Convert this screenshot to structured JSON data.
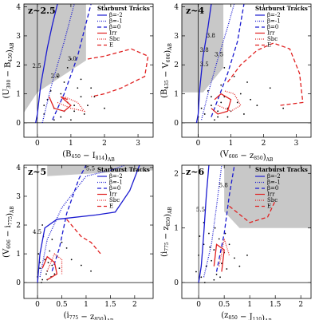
{
  "chart_data": [
    {
      "type": "scatter",
      "label": "z~2.5",
      "legend_title": "Starburst Tracks",
      "xlabel": [
        [
          "(B",
          "450"
        ],
        [
          " − I",
          "814"
        ],
        [
          ")",
          "AB"
        ]
      ],
      "ylabel": [
        [
          "(U",
          "300"
        ],
        [
          " − B",
          "450"
        ],
        [
          ")",
          "AB"
        ]
      ],
      "xlim": [
        -0.4,
        3.45
      ],
      "ylim": [
        -0.5,
        4.1
      ],
      "xticks": [
        0,
        1,
        2,
        3
      ],
      "yticks": [
        0,
        1,
        2,
        3,
        4
      ],
      "region": {
        "color": "#c8c8c8",
        "x": [
          -0.4,
          1.45,
          1.45,
          0,
          -0.4
        ],
        "y": [
          4.1,
          4.1,
          2.15,
          1.05,
          0.35
        ]
      },
      "points": {
        "color": "#000000",
        "x": [
          0.2,
          0.5,
          0.7,
          0.9,
          1.1,
          1.3,
          0.4,
          0.8,
          1.0,
          1.2,
          1.5,
          0.3,
          0.6,
          1.4,
          1.7,
          0.9,
          1.1,
          0.5,
          2.0,
          0.7,
          1.3,
          0.8,
          1.6,
          0.2,
          1.0
        ],
        "y": [
          0.3,
          0.5,
          0.2,
          0.7,
          0.4,
          0.9,
          1.1,
          1.4,
          0.1,
          1.2,
          0.6,
          0.8,
          1.6,
          0.3,
          0.9,
          1.9,
          0.6,
          0.1,
          0.5,
          1.0,
          1.5,
          0.4,
          1.2,
          0.6,
          2.2
        ]
      },
      "series": [
        {
          "name": "β=-2",
          "color": "#1a1ad0",
          "dash": "solid",
          "x": [
            -0.05,
            0.0,
            0.1,
            0.3,
            0.45,
            0.6
          ],
          "y": [
            0,
            0.3,
            1.3,
            2.6,
            3.4,
            4.1
          ]
        },
        {
          "name": "β=-1",
          "color": "#1a1ad0",
          "dash": "dotted",
          "x": [
            0.15,
            0.4,
            0.8,
            1.1
          ],
          "y": [
            0,
            1.2,
            2.8,
            4.1
          ]
        },
        {
          "name": "β=0",
          "color": "#1a1ad0",
          "dash": "dashed",
          "x": [
            0.45,
            0.8,
            1.2,
            1.6
          ],
          "y": [
            0.1,
            1.0,
            2.3,
            4.1
          ]
        },
        {
          "name": "Irr",
          "color": "#e02020",
          "dash": "solid",
          "x": [
            0.35,
            0.5,
            0.8,
            1.0,
            0.7,
            0.9
          ],
          "y": [
            0.9,
            0.5,
            0.4,
            0.6,
            0.9,
            0.8
          ]
        },
        {
          "name": "Sbc",
          "color": "#e02020",
          "dash": "dotted",
          "x": [
            0.6,
            1.0,
            1.4,
            1.2,
            0.8
          ],
          "y": [
            0.7,
            0.5,
            0.4,
            0.7,
            0.9
          ]
        },
        {
          "name": "E",
          "color": "#e02020",
          "dash": "dashed",
          "x": [
            1.5,
            2.0,
            2.8,
            3.3,
            3.2,
            2.5,
            2.0,
            1.6
          ],
          "y": [
            2.2,
            2.3,
            2.55,
            2.3,
            1.6,
            1.2,
            1.0,
            0.9
          ]
        }
      ],
      "annotation_color": "#1a1ad0",
      "annotations": [
        {
          "text": "2.5",
          "x": -0.15,
          "y": 1.9
        },
        {
          "text": "2.0",
          "x": 0.4,
          "y": 1.55
        },
        {
          "text": "3.0",
          "x": 0.9,
          "y": 2.15
        }
      ]
    },
    {
      "type": "scatter",
      "label": "z~4",
      "legend_title": "Starburst Tracks",
      "xlabel": [
        [
          "(V",
          "606"
        ],
        [
          " − z",
          "850"
        ],
        [
          ")",
          "AB"
        ]
      ],
      "ylabel": [
        [
          "(B",
          "435"
        ],
        [
          " − V",
          "606"
        ],
        [
          ")",
          "AB"
        ]
      ],
      "xlim": [
        -0.5,
        3.45
      ],
      "ylim": [
        -0.5,
        4.1
      ],
      "xticks": [
        0,
        1,
        2,
        3
      ],
      "yticks": [
        0,
        1,
        2,
        3,
        4
      ],
      "region": {
        "color": "#c8c8c8",
        "x": [
          -0.5,
          0.77,
          0.77,
          0.15,
          -0.5
        ],
        "y": [
          4.1,
          4.1,
          1.9,
          1.05,
          1.05
        ]
      },
      "points": {
        "color": "#000000",
        "x": [
          0.2,
          0.4,
          0.6,
          0.8,
          1.0,
          1.2,
          0.3,
          0.5,
          0.7,
          0.9,
          1.1,
          1.4,
          1.6,
          0.1,
          0.6,
          0.8,
          1.3,
          1.8,
          2.2,
          0.4,
          0.9,
          1.5,
          0.0,
          0.7,
          2.6
        ],
        "y": [
          0.3,
          0.6,
          0.2,
          0.9,
          0.4,
          0.7,
          1.1,
          0.1,
          1.3,
          0.5,
          1.6,
          0.3,
          0.8,
          0.5,
          0.4,
          1.9,
          1.0,
          0.6,
          1.2,
          0.9,
          0.2,
          1.4,
          0.2,
          0.7,
          0.5
        ]
      },
      "series": [
        {
          "name": "β=-2",
          "color": "#1a1ad0",
          "dash": "solid",
          "x": [
            -0.05,
            0.0,
            0.05,
            0.15,
            0.3,
            0.4
          ],
          "y": [
            0,
            0.3,
            1.2,
            2.3,
            3.3,
            4.1
          ]
        },
        {
          "name": "β=-1",
          "color": "#1a1ad0",
          "dash": "dotted",
          "x": [
            0.1,
            0.3,
            0.6,
            0.9,
            1.1
          ],
          "y": [
            0.1,
            1.0,
            2.2,
            3.3,
            4.1
          ]
        },
        {
          "name": "β=0",
          "color": "#1a1ad0",
          "dash": "dashed",
          "x": [
            0.4,
            0.6,
            0.9,
            1.2,
            1.4
          ],
          "y": [
            0.2,
            0.8,
            1.7,
            2.8,
            4.1
          ]
        },
        {
          "name": "Irr",
          "color": "#e02020",
          "dash": "solid",
          "x": [
            0.4,
            0.6,
            0.9,
            1.0,
            0.7,
            0.5
          ],
          "y": [
            0.5,
            0.3,
            0.4,
            0.8,
            1.0,
            0.8
          ]
        },
        {
          "name": "Sbc",
          "color": "#e02020",
          "dash": "dotted",
          "x": [
            0.6,
            1.0,
            1.3,
            1.1,
            0.8
          ],
          "y": [
            0.6,
            0.4,
            0.6,
            1.0,
            1.1
          ]
        },
        {
          "name": "E",
          "color": "#e02020",
          "dash": "dashed",
          "x": [
            0.9,
            1.3,
            1.8,
            2.3,
            2.8,
            3.1,
            3.2,
            2.5
          ],
          "y": [
            1.4,
            2.0,
            2.5,
            2.75,
            2.55,
            1.7,
            0.7,
            0.6
          ]
        }
      ],
      "annotation_color": "#1a1ad0",
      "annotations": [
        {
          "text": "3.8",
          "x": 0.25,
          "y": 2.95
        },
        {
          "text": "3.5",
          "x": 0.05,
          "y": 1.95
        },
        {
          "text": "3.5",
          "x": 0.5,
          "y": 2.3
        },
        {
          "text": "3.8",
          "x": 0.05,
          "y": 2.45
        }
      ]
    },
    {
      "type": "scatter",
      "label": "z~5",
      "legend_title": "Starburst Tracks",
      "xlabel": [
        [
          "(i",
          "775"
        ],
        [
          " − z",
          "850"
        ],
        [
          ")",
          "AB"
        ]
      ],
      "ylabel": [
        [
          "(V",
          "606"
        ],
        [
          " − i",
          "775"
        ],
        [
          ")",
          "AB"
        ]
      ],
      "xlim": [
        -0.28,
        2.38
      ],
      "ylim": [
        -0.55,
        4.08
      ],
      "xticks": [
        0,
        0.5,
        1,
        1.5,
        2
      ],
      "yticks": [
        0,
        1,
        2,
        3,
        4
      ],
      "region": {
        "color": "#c8c8c8",
        "x": [
          0.2,
          2.38,
          2.38,
          1.2,
          0.2
        ],
        "y": [
          4.08,
          4.08,
          3.9,
          3.8,
          3.7
        ]
      },
      "points": {
        "color": "#000000",
        "x": [
          0.0,
          0.05,
          0.1,
          0.15,
          0.2,
          0.25,
          0.3,
          0.35,
          0.4,
          0.5,
          0.02,
          0.08,
          0.12,
          0.18,
          0.22,
          0.28,
          0.45,
          0.6,
          0.7,
          0.9,
          0.1,
          0.3,
          0.05,
          0.2,
          1.1
        ],
        "y": [
          0.2,
          0.5,
          0.1,
          0.8,
          0.4,
          1.1,
          0.6,
          0.3,
          0.9,
          1.4,
          1.0,
          0.0,
          1.6,
          0.3,
          0.7,
          0.2,
          0.5,
          1.2,
          0.8,
          0.6,
          2.0,
          1.5,
          0.7,
          0.1,
          0.4
        ]
      },
      "series": [
        {
          "name": "β=-2",
          "color": "#1a1ad0",
          "dash": "solid",
          "x": [
            0.0,
            0.05,
            0.15,
            0.4,
            1.2,
            1.6,
            1.9,
            2.1
          ],
          "y": [
            0,
            1.0,
            1.9,
            2.2,
            2.35,
            2.45,
            3.2,
            4.08
          ]
        },
        {
          "name": "β=-1",
          "color": "#1a1ad0",
          "dash": "dotted",
          "x": [
            0.05,
            0.2,
            0.5,
            1.0,
            1.5,
            1.8
          ],
          "y": [
            0.2,
            1.5,
            2.6,
            3.7,
            3.9,
            4.08
          ]
        },
        {
          "name": "β=0",
          "color": "#1a1ad0",
          "dash": "dashed",
          "x": [
            0.3,
            0.45,
            0.6,
            0.85,
            1.0
          ],
          "y": [
            0.4,
            1.2,
            2.4,
            3.6,
            4.08
          ]
        },
        {
          "name": "Irr",
          "color": "#e02020",
          "dash": "solid",
          "x": [
            0.1,
            0.2,
            0.35,
            0.4,
            0.2
          ],
          "y": [
            0.5,
            0.9,
            0.7,
            0.3,
            0.1
          ]
        },
        {
          "name": "Sbc",
          "color": "#e02020",
          "dash": "dotted",
          "x": [
            0.2,
            0.35,
            0.5,
            0.5
          ],
          "y": [
            0.4,
            1.0,
            0.8,
            0.3
          ]
        },
        {
          "name": "E",
          "color": "#e02020",
          "dash": "dashed",
          "x": [
            0.6,
            0.7,
            0.9,
            1.1,
            1.3
          ],
          "y": [
            2.2,
            2.0,
            1.6,
            1.4,
            1.0
          ]
        }
      ],
      "annotation_color": "#1a1ad0",
      "annotations": [
        {
          "text": "5.5",
          "x": 1.0,
          "y": 3.9
        },
        {
          "text": "4.5",
          "x": -0.1,
          "y": 1.7
        }
      ]
    },
    {
      "type": "scatter",
      "label": "z~6",
      "legend_title": "Starburst Tracks",
      "xlabel": [
        [
          "(z",
          "850"
        ],
        [
          " − J",
          "110"
        ],
        [
          ")",
          "AB"
        ]
      ],
      "ylabel": [
        [
          "(i",
          "775"
        ],
        [
          " − z",
          "850"
        ],
        [
          ")",
          "AB"
        ]
      ],
      "xlim": [
        -0.33,
        2.2
      ],
      "ylim": [
        -0.29,
        2.15
      ],
      "xticks": [
        0,
        0.5,
        1,
        1.5,
        2
      ],
      "yticks": [
        0,
        1,
        2
      ],
      "region": {
        "color": "#c8c8c8",
        "x": [
          0.5,
          2.2,
          2.2,
          0.8,
          0.5
        ],
        "y": [
          2.15,
          2.15,
          1.0,
          1.0,
          1.3
        ]
      },
      "points": {
        "color": "#000000",
        "x": [
          -0.05,
          0.0,
          0.05,
          0.1,
          0.15,
          0.2,
          0.25,
          0.3,
          0.35,
          0.4,
          0.45,
          0.5,
          0.55,
          0.6,
          0.7,
          0.8,
          0.02,
          0.12,
          0.22,
          0.32,
          0.42,
          0.52,
          0.1,
          0.3,
          0.95
        ],
        "y": [
          0.2,
          0.5,
          0.1,
          0.7,
          0.3,
          0.9,
          0.4,
          0.6,
          0.15,
          0.8,
          0.35,
          0.55,
          0.25,
          0.7,
          0.45,
          0.3,
          0.85,
          0.0,
          0.65,
          1.0,
          0.1,
          0.9,
          1.1,
          0.05,
          0.5
        ]
      },
      "series": [
        {
          "name": "β=-2",
          "color": "#1a1ad0",
          "dash": "solid",
          "x": [
            0.0,
            0.05,
            0.1,
            0.15,
            0.2
          ],
          "y": [
            0,
            0.3,
            0.9,
            1.6,
            2.15
          ]
        },
        {
          "name": "β=-1",
          "color": "#1a1ad0",
          "dash": "dotted",
          "x": [
            0.1,
            0.25,
            0.35,
            0.45
          ],
          "y": [
            0.1,
            0.7,
            1.4,
            2.15
          ]
        },
        {
          "name": "β=0",
          "color": "#1a1ad0",
          "dash": "dashed",
          "x": [
            0.35,
            0.5,
            0.6,
            0.7
          ],
          "y": [
            0.2,
            0.9,
            1.6,
            2.15
          ]
        },
        {
          "name": "Irr",
          "color": "#e02020",
          "dash": "solid",
          "x": [
            0.3,
            0.35,
            0.5,
            0.45
          ],
          "y": [
            0.3,
            0.7,
            0.6,
            0.2
          ]
        },
        {
          "name": "Sbc",
          "color": "#e02020",
          "dash": "dotted",
          "x": [
            0.4,
            0.5,
            0.6
          ],
          "y": [
            0.3,
            0.8,
            0.5
          ]
        },
        {
          "name": "E",
          "color": "#e02020",
          "dash": "dashed",
          "x": [
            0.6,
            1.0,
            1.35,
            1.5
          ],
          "y": [
            1.4,
            1.1,
            1.2,
            1.5
          ]
        }
      ],
      "annotation_color": "#1a1ad0",
      "annotations": [
        {
          "text": "5.8",
          "x": 0.4,
          "y": 1.75
        },
        {
          "text": "5.5",
          "x": -0.05,
          "y": 1.3
        }
      ]
    }
  ]
}
